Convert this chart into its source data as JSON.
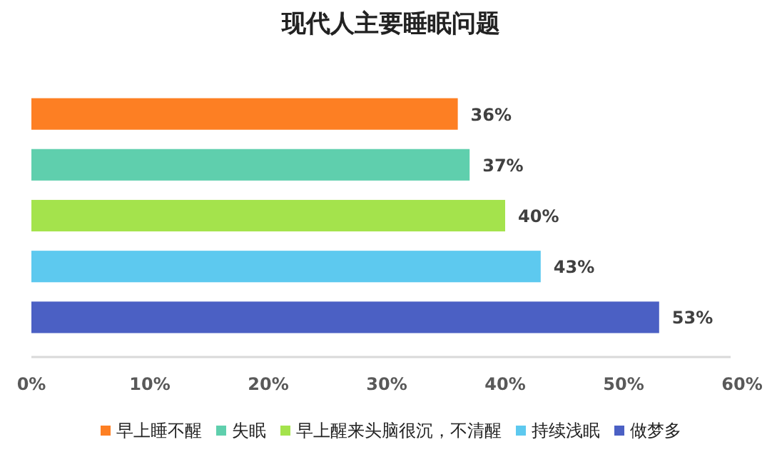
{
  "chart_data": {
    "type": "bar",
    "title": "现代人主要睡眠问题",
    "orientation": "horizontal",
    "stacked": true,
    "categories": [
      null,
      null,
      null,
      null,
      null
    ],
    "series": [
      {
        "name": "早上睡不醒",
        "color": "#fd7f23",
        "values": [
          36,
          null,
          null,
          null,
          null
        ],
        "value_labels": [
          "36%",
          null,
          null,
          null,
          null
        ]
      },
      {
        "name": "失眠",
        "color": "#5fcfad",
        "values": [
          null,
          37,
          null,
          null,
          null
        ],
        "value_labels": [
          null,
          "37%",
          null,
          null,
          null
        ]
      },
      {
        "name": "早上醒来头脑很沉，不清醒",
        "color": "#a4e34c",
        "values": [
          null,
          null,
          40,
          null,
          null
        ],
        "value_labels": [
          null,
          null,
          "40%",
          null,
          null
        ]
      },
      {
        "name": "持续浅眠",
        "color": "#5dc9ef",
        "values": [
          null,
          null,
          null,
          43,
          null
        ],
        "value_labels": [
          null,
          null,
          null,
          "43%",
          null
        ]
      },
      {
        "name": "做梦多",
        "color": "#4b60c4",
        "values": [
          null,
          null,
          null,
          null,
          53
        ],
        "value_labels": [
          null,
          null,
          null,
          null,
          "53%"
        ]
      }
    ],
    "xlim": [
      0,
      60
    ],
    "xticks": [
      {
        "value": 0,
        "label": "0%"
      },
      {
        "value": 10,
        "label": "10%"
      },
      {
        "value": 20,
        "label": "20%"
      },
      {
        "value": 30,
        "label": "30%"
      },
      {
        "value": 40,
        "label": "40%"
      },
      {
        "value": 50,
        "label": "50%"
      },
      {
        "value": 60,
        "label": "60%"
      }
    ],
    "legend": "bottom"
  }
}
